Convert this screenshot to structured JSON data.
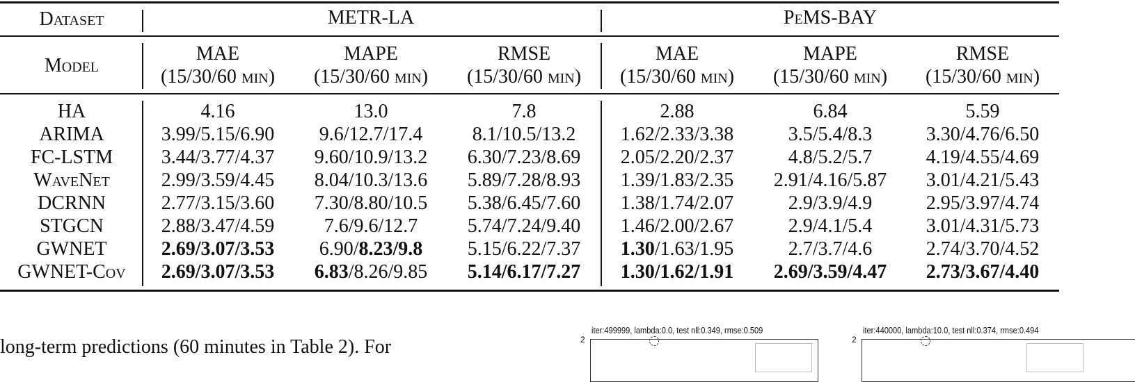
{
  "table": {
    "dataset_label": "Dataset",
    "model_label": "Model",
    "datasets": [
      "METR-LA",
      "PeMS-BAY"
    ],
    "metric_headers": [
      {
        "metric": "MAE",
        "unit": "(15/30/60 min)"
      },
      {
        "metric": "MAPE",
        "unit": "(15/30/60 min)"
      },
      {
        "metric": "RMSE",
        "unit": "(15/30/60 min)"
      },
      {
        "metric": "MAE",
        "unit": "(15/30/60 min)"
      },
      {
        "metric": "MAPE",
        "unit": "(15/30/60 min)"
      },
      {
        "metric": "RMSE",
        "unit": "(15/30/60 min)"
      }
    ],
    "rows": [
      {
        "model": "HA",
        "cells": [
          {
            "parts": [
              "4.16"
            ],
            "bold": [
              false
            ]
          },
          {
            "parts": [
              "13.0"
            ],
            "bold": [
              false
            ]
          },
          {
            "parts": [
              "7.8"
            ],
            "bold": [
              false
            ]
          },
          {
            "parts": [
              "2.88"
            ],
            "bold": [
              false
            ]
          },
          {
            "parts": [
              "6.84"
            ],
            "bold": [
              false
            ]
          },
          {
            "parts": [
              "5.59"
            ],
            "bold": [
              false
            ]
          }
        ]
      },
      {
        "model": "ARIMA",
        "cells": [
          {
            "parts": [
              "3.99/5.15/6.90"
            ],
            "bold": [
              false
            ]
          },
          {
            "parts": [
              "9.6/12.7/17.4"
            ],
            "bold": [
              false
            ]
          },
          {
            "parts": [
              "8.1/10.5/13.2"
            ],
            "bold": [
              false
            ]
          },
          {
            "parts": [
              "1.62/2.33/3.38"
            ],
            "bold": [
              false
            ]
          },
          {
            "parts": [
              "3.5/5.4/8.3"
            ],
            "bold": [
              false
            ]
          },
          {
            "parts": [
              "3.30/4.76/6.50"
            ],
            "bold": [
              false
            ]
          }
        ]
      },
      {
        "model": "FC-LSTM",
        "cells": [
          {
            "parts": [
              "3.44/3.77/4.37"
            ],
            "bold": [
              false
            ]
          },
          {
            "parts": [
              "9.60/10.9/13.2"
            ],
            "bold": [
              false
            ]
          },
          {
            "parts": [
              "6.30/7.23/8.69"
            ],
            "bold": [
              false
            ]
          },
          {
            "parts": [
              "2.05/2.20/2.37"
            ],
            "bold": [
              false
            ]
          },
          {
            "parts": [
              "4.8/5.2/5.7"
            ],
            "bold": [
              false
            ]
          },
          {
            "parts": [
              "4.19/4.55/4.69"
            ],
            "bold": [
              false
            ]
          }
        ]
      },
      {
        "model": "WaveNet",
        "smallcaps": true,
        "cells": [
          {
            "parts": [
              "2.99/3.59/4.45"
            ],
            "bold": [
              false
            ]
          },
          {
            "parts": [
              "8.04/10.3/13.6"
            ],
            "bold": [
              false
            ]
          },
          {
            "parts": [
              "5.89/7.28/8.93"
            ],
            "bold": [
              false
            ]
          },
          {
            "parts": [
              "1.39/1.83/2.35"
            ],
            "bold": [
              false
            ]
          },
          {
            "parts": [
              "2.91/4.16/5.87"
            ],
            "bold": [
              false
            ]
          },
          {
            "parts": [
              "3.01/4.21/5.43"
            ],
            "bold": [
              false
            ]
          }
        ]
      },
      {
        "model": "DCRNN",
        "cells": [
          {
            "parts": [
              "2.77/3.15/3.60"
            ],
            "bold": [
              false
            ]
          },
          {
            "parts": [
              "7.30/8.80/10.5"
            ],
            "bold": [
              false
            ]
          },
          {
            "parts": [
              "5.38/6.45/7.60"
            ],
            "bold": [
              false
            ]
          },
          {
            "parts": [
              "1.38/1.74/2.07"
            ],
            "bold": [
              false
            ]
          },
          {
            "parts": [
              "2.9/3.9/4.9"
            ],
            "bold": [
              false
            ]
          },
          {
            "parts": [
              "2.95/3.97/4.74"
            ],
            "bold": [
              false
            ]
          }
        ]
      },
      {
        "model": "STGCN",
        "cells": [
          {
            "parts": [
              "2.88/3.47/4.59"
            ],
            "bold": [
              false
            ]
          },
          {
            "parts": [
              "7.6/9.6/12.7"
            ],
            "bold": [
              false
            ]
          },
          {
            "parts": [
              "5.74/7.24/9.40"
            ],
            "bold": [
              false
            ]
          },
          {
            "parts": [
              "1.46/2.00/2.67"
            ],
            "bold": [
              false
            ]
          },
          {
            "parts": [
              "2.9/4.1/5.4"
            ],
            "bold": [
              false
            ]
          },
          {
            "parts": [
              "3.01/4.31/5.73"
            ],
            "bold": [
              false
            ]
          }
        ]
      },
      {
        "model": "GWNET",
        "cells": [
          {
            "parts": [
              "2.69/3.07/3.53"
            ],
            "bold": [
              true
            ]
          },
          {
            "parts": [
              "6.90/",
              "8.23/9.8"
            ],
            "bold": [
              false,
              true
            ]
          },
          {
            "parts": [
              "5.15/6.22/7.37"
            ],
            "bold": [
              false
            ]
          },
          {
            "parts": [
              "1.30",
              "/1.63/1.95"
            ],
            "bold": [
              true,
              false
            ]
          },
          {
            "parts": [
              "2.7/3.7/4.6"
            ],
            "bold": [
              false
            ]
          },
          {
            "parts": [
              "2.74/3.70/4.52"
            ],
            "bold": [
              false
            ]
          }
        ]
      },
      {
        "model": "GWNET-Cov",
        "smallcaps": true,
        "cells": [
          {
            "parts": [
              "2.69/3.07/3.53"
            ],
            "bold": [
              true
            ]
          },
          {
            "parts": [
              "6.83",
              "/8.26/9.85"
            ],
            "bold": [
              true,
              false
            ]
          },
          {
            "parts": [
              "5.14/6.17/7.27"
            ],
            "bold": [
              true
            ]
          },
          {
            "parts": [
              "1.30/1.62/1.91"
            ],
            "bold": [
              true
            ]
          },
          {
            "parts": [
              "2.69/3.59/4.47"
            ],
            "bold": [
              true
            ]
          },
          {
            "parts": [
              "2.73/3.67/4.40"
            ],
            "bold": [
              true
            ]
          }
        ]
      }
    ]
  },
  "body_text": "long-term predictions (60 minutes in Table 2). For",
  "plots": [
    {
      "title": "iter:499999, lambda:0.0, test nll:0.349, rmse:0.509",
      "y_tick": "2"
    },
    {
      "title": "iter:440000, lambda:10.0, test nll:0.374, rmse:0.494",
      "y_tick": "2"
    }
  ]
}
